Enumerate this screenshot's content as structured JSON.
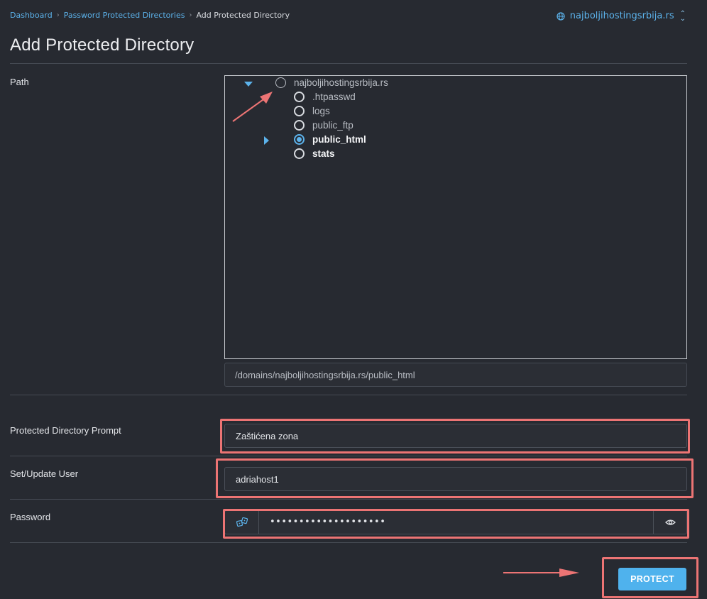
{
  "breadcrumb": {
    "items": [
      "Dashboard",
      "Password Protected Directories"
    ],
    "current": "Add Protected Directory"
  },
  "domain_switcher": {
    "label": "najboljihostingsrbija.rs",
    "icon": "globe-icon"
  },
  "page_title": "Add Protected Directory",
  "path": {
    "label": "Path",
    "tree": {
      "root": "najboljihostingsrbija.rs",
      "children": [
        {
          "label": ".htpasswd",
          "selected": false,
          "bold": false
        },
        {
          "label": "logs",
          "selected": false,
          "bold": false
        },
        {
          "label": "public_ftp",
          "selected": false,
          "bold": false
        },
        {
          "label": "public_html",
          "selected": true,
          "bold": true,
          "expandable": true
        },
        {
          "label": "stats",
          "selected": false,
          "bold": true
        }
      ]
    },
    "selected_path": "/domains/najboljihostingsrbija.rs/public_html"
  },
  "prompt": {
    "label": "Protected Directory Prompt",
    "value": "Zaštićena zona"
  },
  "user": {
    "label": "Set/Update User",
    "value": "adriahost1"
  },
  "password": {
    "label": "Password",
    "value": "••••••••••••••••••••"
  },
  "protect_button": {
    "label": "PROTECT"
  },
  "colors": {
    "background": "#272a31",
    "accent": "#5cb3ec",
    "button": "#4fb2ed",
    "annotation": "#ec7474"
  }
}
